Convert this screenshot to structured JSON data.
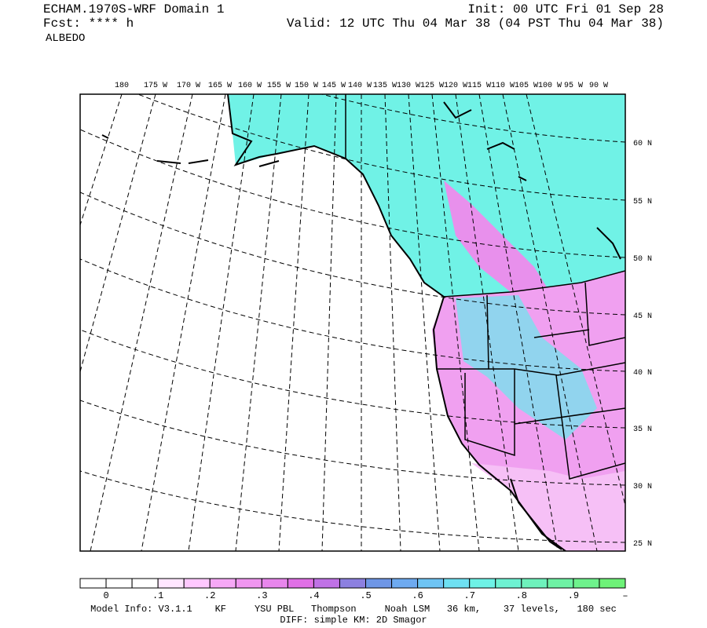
{
  "header": {
    "title": "ECHAM.1970S-WRF Domain 1",
    "forecast": "Fcst: **** h",
    "field": "ALBEDO",
    "init": "Init: 00 UTC Fri 01 Sep 28",
    "valid": "Valid: 12 UTC Thu 04 Mar 38 (04 PST Thu 04 Mar 38)"
  },
  "map": {
    "longitude_labels": [
      "180",
      "175 W",
      "170 W",
      "165 W",
      "160 W",
      "155 W",
      "150 W",
      "145 W",
      "140 W",
      "135 W",
      "130 W",
      "125 W",
      "120 W",
      "115 W",
      "110 W",
      "105 W",
      "100 W",
      "95 W",
      "90 W"
    ],
    "latitude_labels": [
      "60 N",
      "55 N",
      "50 N",
      "45 N",
      "40 N",
      "35 N",
      "30 N",
      "25 N"
    ]
  },
  "colorbar": {
    "labels": [
      "0",
      ".1",
      ".2",
      ".3",
      ".4",
      ".5",
      ".6",
      ".7",
      ".8",
      ".9",
      "–"
    ],
    "colors": [
      "#ffffff",
      "#ffffff",
      "#ffffff",
      "#ffe6ff",
      "#ffc8ff",
      "#f6a8f6",
      "#f096f0",
      "#e886ec",
      "#e070e6",
      "#c072e6",
      "#8c80e0",
      "#6e96e6",
      "#6eaaf0",
      "#6ec4f4",
      "#6ee0f2",
      "#6ef2e6",
      "#6ef2d2",
      "#6ef2bc",
      "#6ef2a4",
      "#6ef28c",
      "#6ef278"
    ]
  },
  "footer": {
    "model_info": "Model Info: V3.1.1    KF     YSU PBL   Thompson     Noah LSM   36 km,    37 levels,   180 sec",
    "diff": "DIFF: simple KM: 2D Smagor"
  }
}
